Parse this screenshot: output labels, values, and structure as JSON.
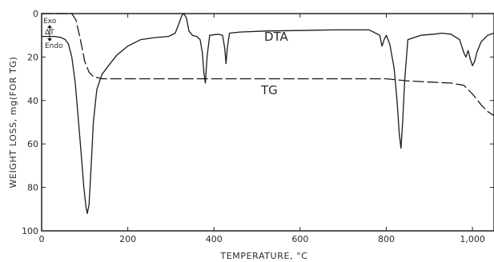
{
  "chart_data": {
    "type": "line",
    "xlabel": "TEMPERATURE, °C",
    "ylabel": "WEIGHT LOSS, mg(FOR TG)",
    "xlim": [
      0,
      1050
    ],
    "ylim": [
      0,
      100
    ],
    "y_inverted": true,
    "grid": false,
    "x_ticks": [
      0,
      200,
      400,
      600,
      800,
      1000
    ],
    "x_tick_labels": [
      "0",
      "200",
      "400",
      "600",
      "800",
      "1,000"
    ],
    "y_ticks": [
      0,
      20,
      40,
      60,
      80,
      100
    ],
    "y_tick_labels": [
      "0",
      "20",
      "40",
      "60",
      "80",
      "100"
    ],
    "legend": {
      "exo": "Exo",
      "delta_t": "ΔT",
      "endo": "Endo"
    },
    "series": [
      {
        "name": "DTA",
        "style": "solid",
        "x": [
          0,
          15,
          30,
          45,
          55,
          62,
          70,
          78,
          85,
          92,
          98,
          103,
          106,
          110,
          115,
          120,
          128,
          140,
          155,
          175,
          200,
          230,
          265,
          295,
          310,
          318,
          325,
          330,
          336,
          342,
          350,
          360,
          368,
          373,
          377,
          380,
          384,
          390,
          410,
          420,
          425,
          428,
          431,
          436,
          460,
          520,
          600,
          680,
          760,
          785,
          790,
          795,
          800,
          808,
          818,
          825,
          830,
          834,
          838,
          843,
          850,
          880,
          910,
          930,
          950,
          970,
          980,
          985,
          990,
          995,
          1000,
          1005,
          1010,
          1020,
          1035,
          1050
        ],
        "y": [
          10.5,
          10.5,
          10.5,
          11,
          12,
          14,
          20,
          32,
          48,
          65,
          80,
          89,
          92,
          88,
          70,
          50,
          35,
          28,
          24,
          19,
          15,
          12,
          11,
          10.5,
          9,
          5,
          1,
          0,
          2,
          8,
          10,
          10.5,
          12,
          18,
          28,
          32,
          20,
          10,
          9.5,
          10,
          16,
          23,
          16,
          9,
          8.5,
          8,
          7.8,
          7.5,
          7.5,
          10,
          15,
          12,
          10,
          14,
          25,
          40,
          55,
          62,
          50,
          30,
          12,
          10,
          9.5,
          9,
          9.5,
          12,
          18,
          20,
          17,
          21,
          24,
          22,
          18,
          13,
          10,
          9
        ]
      },
      {
        "name": "TG",
        "style": "dashed",
        "x": [
          0,
          70,
          80,
          90,
          100,
          110,
          120,
          140,
          200,
          300,
          400,
          500,
          600,
          700,
          800,
          850,
          900,
          950,
          980,
          1000,
          1020,
          1035,
          1050
        ],
        "y": [
          0,
          0,
          3,
          12,
          22,
          27,
          29,
          30,
          30,
          30,
          30,
          30,
          30,
          30,
          30,
          31,
          31.5,
          32,
          33,
          37,
          42,
          45,
          47
        ]
      }
    ]
  }
}
